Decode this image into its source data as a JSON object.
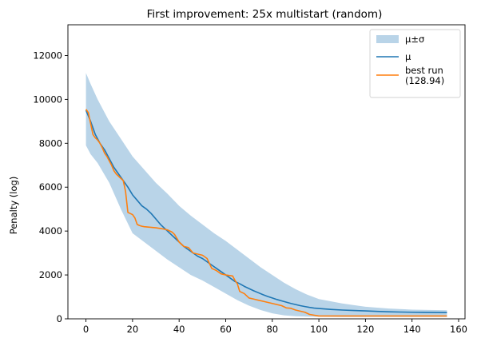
{
  "chart_data": {
    "type": "line",
    "title": "First improvement: 25x multistart (random)",
    "xlabel": "",
    "ylabel": "Penalty (log)",
    "xlim": [
      -7.75,
      162.75
    ],
    "ylim": [
      0,
      13400
    ],
    "xticks": [
      0,
      20,
      40,
      60,
      80,
      100,
      120,
      140,
      160
    ],
    "yticks": [
      0,
      2000,
      4000,
      6000,
      8000,
      10000,
      12000
    ],
    "grid": false,
    "legend": {
      "position": "top-right",
      "entries": [
        {
          "label": "μ±σ",
          "kind": "band",
          "color": "#b9d4e8"
        },
        {
          "label": "μ",
          "kind": "line",
          "color": "#1f77b4"
        },
        {
          "label": "best run\n(128.94)",
          "kind": "line",
          "color": "#ff7f0e"
        }
      ]
    },
    "series": [
      {
        "name": "μ±σ",
        "kind": "band",
        "color": "#b9d4e8",
        "x": [
          0,
          2,
          5,
          10,
          15,
          20,
          25,
          30,
          35,
          40,
          45,
          50,
          55,
          60,
          65,
          70,
          75,
          80,
          85,
          90,
          95,
          100,
          110,
          120,
          130,
          140,
          150,
          155
        ],
        "upper": [
          11200,
          10700,
          10000,
          9000,
          8200,
          7400,
          6800,
          6200,
          5700,
          5150,
          4700,
          4300,
          3900,
          3550,
          3150,
          2750,
          2350,
          2000,
          1650,
          1350,
          1100,
          900,
          700,
          550,
          470,
          420,
          400,
          390
        ],
        "lower": [
          7900,
          7500,
          7100,
          6200,
          5000,
          3900,
          3500,
          3100,
          2700,
          2350,
          2000,
          1750,
          1450,
          1150,
          850,
          600,
          400,
          250,
          160,
          120,
          100,
          90,
          80,
          80,
          80,
          80,
          80,
          80
        ]
      },
      {
        "name": "μ",
        "kind": "line",
        "color": "#1f77b4",
        "x": [
          0,
          2,
          4,
          6,
          8,
          10,
          12,
          14,
          16,
          18,
          20,
          22,
          24,
          26,
          28,
          30,
          32,
          34,
          36,
          38,
          40,
          42,
          44,
          46,
          48,
          50,
          52,
          54,
          56,
          58,
          60,
          62,
          64,
          66,
          68,
          70,
          72,
          74,
          76,
          78,
          80,
          82,
          84,
          86,
          88,
          90,
          92,
          94,
          96,
          98,
          100,
          105,
          110,
          115,
          120,
          125,
          130,
          135,
          140,
          145,
          150,
          155
        ],
        "values": [
          9500,
          9000,
          8400,
          8000,
          7700,
          7300,
          6900,
          6600,
          6300,
          6000,
          5650,
          5400,
          5150,
          5000,
          4800,
          4550,
          4300,
          4100,
          3900,
          3700,
          3500,
          3300,
          3150,
          3000,
          2850,
          2750,
          2600,
          2450,
          2300,
          2150,
          2000,
          1850,
          1700,
          1600,
          1480,
          1380,
          1280,
          1190,
          1100,
          1020,
          950,
          880,
          820,
          760,
          700,
          650,
          600,
          560,
          520,
          490,
          470,
          430,
          400,
          380,
          360,
          340,
          320,
          310,
          300,
          295,
          290,
          285
        ]
      },
      {
        "name": "best run\n(128.94)",
        "kind": "line",
        "color": "#ff7f0e",
        "x": [
          0,
          1,
          2,
          3,
          4,
          5,
          6,
          7,
          8,
          9,
          10,
          11,
          12,
          13,
          14,
          15,
          16,
          17,
          18,
          19,
          20,
          21,
          22,
          23,
          24,
          25,
          30,
          33,
          35,
          37,
          38,
          40,
          42,
          44,
          46,
          50,
          52,
          54,
          56,
          58,
          60,
          63,
          64,
          65,
          66,
          67,
          68,
          70,
          72,
          74,
          76,
          78,
          80,
          84,
          86,
          88,
          90,
          92,
          94,
          96,
          100,
          110,
          120,
          130,
          140,
          150,
          155
        ],
        "values": [
          9550,
          9400,
          8900,
          8400,
          8250,
          8150,
          8000,
          7800,
          7550,
          7400,
          7200,
          7000,
          6750,
          6600,
          6500,
          6400,
          6300,
          5800,
          4850,
          4800,
          4750,
          4600,
          4300,
          4250,
          4220,
          4200,
          4150,
          4100,
          4050,
          3950,
          3850,
          3500,
          3300,
          3250,
          3000,
          2900,
          2750,
          2300,
          2200,
          2050,
          2000,
          1950,
          1750,
          1600,
          1250,
          1200,
          1150,
          950,
          900,
          850,
          800,
          750,
          700,
          600,
          500,
          480,
          400,
          350,
          300,
          200,
          130,
          130,
          130,
          130,
          130,
          130,
          130
        ]
      }
    ]
  }
}
